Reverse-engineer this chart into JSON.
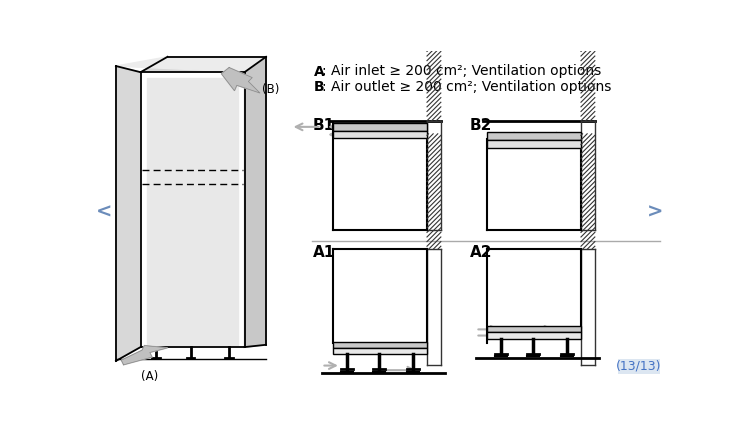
{
  "bg_color": "#ffffff",
  "text_color": "#000000",
  "line_color": "#000000",
  "gray_arrow": "#b0b0b0",
  "hatch_color": "#333333",
  "nav_color": "#6b8cba",
  "page_label": "(13/13)",
  "text_A_bold": "A",
  "text_A_rest": ": Air inlet ≥ 200 cm²; Ventilation options",
  "text_B_bold": "B",
  "text_B_rest": ": Air outlet ≥ 200 cm²; Ventilation options",
  "label_B1": "B1",
  "label_B2": "B2",
  "label_A1": "A1",
  "label_A2": "A2"
}
